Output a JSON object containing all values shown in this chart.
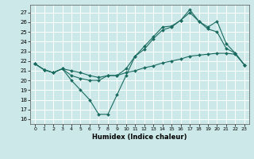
{
  "title": "",
  "xlabel": "Humidex (Indice chaleur)",
  "ylabel": "",
  "bg_color": "#cce8e8",
  "grid_color": "#ffffff",
  "line_color": "#1a6b60",
  "xlim": [
    -0.5,
    23.5
  ],
  "ylim": [
    15.5,
    27.8
  ],
  "yticks": [
    16,
    17,
    18,
    19,
    20,
    21,
    22,
    23,
    24,
    25,
    26,
    27
  ],
  "xticks": [
    0,
    1,
    2,
    3,
    4,
    5,
    6,
    7,
    8,
    9,
    10,
    11,
    12,
    13,
    14,
    15,
    16,
    17,
    18,
    19,
    20,
    21,
    22,
    23
  ],
  "series1_x": [
    0,
    1,
    2,
    3,
    4,
    5,
    6,
    7,
    8,
    9,
    10,
    11,
    12,
    13,
    14,
    15,
    16,
    17,
    18,
    19,
    20,
    21,
    22,
    23
  ],
  "series1_y": [
    21.7,
    21.1,
    20.8,
    21.2,
    20.0,
    19.0,
    18.0,
    16.5,
    16.5,
    18.5,
    20.5,
    22.5,
    23.2,
    24.3,
    25.2,
    25.5,
    26.2,
    27.3,
    26.1,
    25.3,
    25.0,
    23.3,
    22.8,
    21.6
  ],
  "series2_x": [
    0,
    1,
    2,
    3,
    4,
    5,
    6,
    7,
    8,
    9,
    10,
    11,
    12,
    13,
    14,
    15,
    16,
    17,
    18,
    19,
    20,
    21,
    22,
    23
  ],
  "series2_y": [
    21.7,
    21.1,
    20.8,
    21.2,
    21.0,
    20.8,
    20.5,
    20.3,
    20.5,
    20.5,
    20.8,
    21.0,
    21.3,
    21.5,
    21.8,
    22.0,
    22.2,
    22.5,
    22.6,
    22.7,
    22.8,
    22.8,
    22.7,
    21.6
  ],
  "series3_x": [
    0,
    1,
    2,
    3,
    4,
    5,
    6,
    7,
    8,
    9,
    10,
    11,
    12,
    13,
    14,
    15,
    16,
    17,
    18,
    19,
    20,
    21,
    22,
    23
  ],
  "series3_y": [
    21.7,
    21.1,
    20.8,
    21.2,
    20.5,
    20.2,
    20.0,
    20.0,
    20.5,
    20.5,
    21.2,
    22.5,
    23.5,
    24.5,
    25.5,
    25.6,
    26.2,
    27.0,
    26.1,
    25.5,
    26.1,
    23.8,
    22.8,
    21.6
  ]
}
